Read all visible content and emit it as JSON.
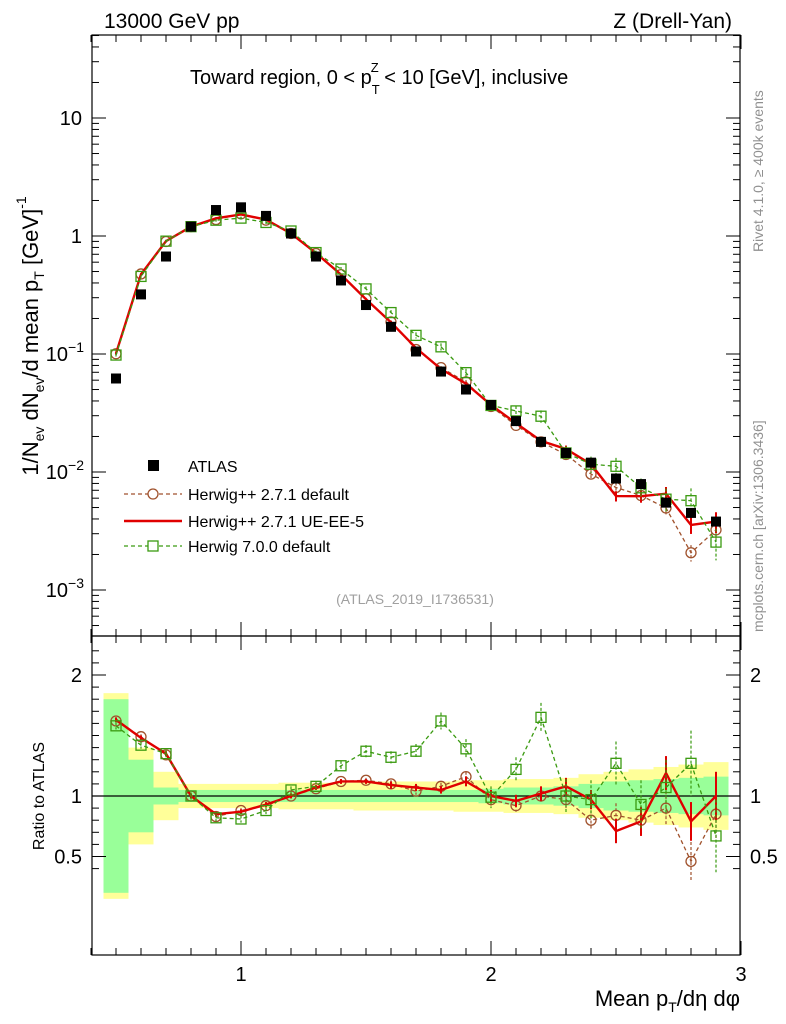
{
  "header": {
    "energy": "13000 GeV pp",
    "process": "Z (Drell-Yan)",
    "region": "Toward region, 0 < p",
    "region_sup": "Z",
    "region_sub": "T",
    "region_tail": " < 10 [GeV], inclusive",
    "analysis": "(ATLAS_2019_I1736531)"
  },
  "side": {
    "rivet": "Rivet 4.1.0, ≥ 400k events",
    "mcplots": "mcplots.cern.ch [arXiv:1306.3436]"
  },
  "axes": {
    "ylabel_main": "1/N_ev dN_ev/d mean p_T [GeV]^-1",
    "ylabel_ratio": "Ratio to ATLAS",
    "xlabel": "Mean p_T/dη dφ",
    "main_ticks": [
      {
        "exp": -3,
        "base": "10",
        "sup": "−3"
      },
      {
        "exp": -2,
        "base": "10",
        "sup": "−2"
      },
      {
        "exp": -1,
        "base": "10",
        "sup": "−1"
      },
      {
        "exp": 0,
        "label": "1"
      },
      {
        "exp": 1,
        "label": "10"
      }
    ],
    "ratio_ticks": [
      {
        "value": 0.5,
        "label": "0.5"
      },
      {
        "value": 1,
        "label": "1"
      },
      {
        "value": 2,
        "label": "2"
      }
    ],
    "x_ticks": [
      {
        "value": 1,
        "label": "1"
      },
      {
        "value": 2,
        "label": "2"
      },
      {
        "value": 3,
        "label": "3"
      }
    ]
  },
  "legend": [
    {
      "key": "atlas",
      "label": "ATLAS"
    },
    {
      "key": "h271def",
      "label": "Herwig++ 2.7.1 default"
    },
    {
      "key": "h271ue",
      "label": "Herwig++ 2.7.1 UE-EE-5"
    },
    {
      "key": "h700",
      "label": "Herwig 7.0.0 default"
    }
  ],
  "colors": {
    "atlas": "#000000",
    "h271def": "#a0522d",
    "h271ue": "#e00000",
    "h700": "#3a9a10",
    "band_inner": "#99ff99",
    "band_outer": "#ffff99"
  },
  "chart_data": {
    "type": "scatter",
    "title": "Toward region, 0 < pT^Z < 10 [GeV], inclusive",
    "xlabel": "Mean pT/dη dφ",
    "ylabel": "1/Nev dNev/d mean pT [GeV]^-1",
    "yscale": "log",
    "xlim": [
      0.4,
      3.0
    ],
    "ylim": [
      0.0003,
      60
    ],
    "ratio_ylim": [
      0.33,
      2.3
    ],
    "x": [
      0.5,
      0.6,
      0.7,
      0.8,
      0.9,
      1.0,
      1.1,
      1.2,
      1.3,
      1.4,
      1.5,
      1.6,
      1.7,
      1.8,
      1.9,
      2.0,
      2.1,
      2.2,
      2.3,
      2.4,
      2.5,
      2.6,
      2.7,
      2.8,
      2.9
    ],
    "atlas": [
      0.062,
      0.32,
      0.67,
      1.2,
      1.66,
      1.75,
      1.48,
      1.05,
      0.67,
      0.42,
      0.26,
      0.17,
      0.105,
      0.071,
      0.05,
      0.037,
      0.027,
      0.018,
      0.0145,
      0.012,
      0.0088,
      0.0079,
      0.0055,
      0.0045,
      0.0038
    ],
    "band_inner": [
      0.8,
      0.3,
      0.07,
      0.05,
      0.05,
      0.05,
      0.05,
      0.05,
      0.05,
      0.05,
      0.05,
      0.05,
      0.05,
      0.05,
      0.05,
      0.06,
      0.07,
      0.07,
      0.08,
      0.1,
      0.12,
      0.13,
      0.14,
      0.15,
      0.16
    ],
    "band_outer": [
      0.85,
      0.4,
      0.2,
      0.1,
      0.1,
      0.1,
      0.1,
      0.11,
      0.11,
      0.11,
      0.12,
      0.12,
      0.12,
      0.12,
      0.13,
      0.13,
      0.14,
      0.14,
      0.15,
      0.18,
      0.2,
      0.22,
      0.24,
      0.26,
      0.28
    ],
    "series": [
      {
        "name": "Herwig++ 2.7.1 default",
        "key": "h271def",
        "marker": "circle",
        "ratio": [
          1.62,
          1.49,
          1.34,
          1.0,
          0.83,
          0.88,
          0.92,
          1.0,
          1.06,
          1.12,
          1.13,
          1.1,
          1.04,
          1.08,
          1.16,
          0.97,
          0.92,
          1.0,
          0.97,
          0.8,
          0.84,
          0.8,
          0.9,
          0.46,
          0.85
        ],
        "ratio_err": [
          0.02,
          0.02,
          0.02,
          0.02,
          0.02,
          0.02,
          0.02,
          0.02,
          0.02,
          0.02,
          0.02,
          0.03,
          0.03,
          0.03,
          0.04,
          0.05,
          0.05,
          0.06,
          0.07,
          0.08,
          0.1,
          0.12,
          0.14,
          0.16,
          0.2
        ]
      },
      {
        "name": "Herwig++ 2.7.1 UE-EE-5",
        "key": "h271ue",
        "marker": "none",
        "ratio": [
          1.63,
          1.48,
          1.35,
          1.0,
          0.85,
          0.87,
          0.93,
          1.0,
          1.07,
          1.12,
          1.12,
          1.09,
          1.07,
          1.05,
          1.12,
          1.0,
          0.96,
          1.02,
          1.08,
          0.97,
          0.71,
          0.79,
          1.19,
          0.79,
          1.0
        ],
        "ratio_err": [
          0.02,
          0.02,
          0.02,
          0.02,
          0.02,
          0.02,
          0.02,
          0.02,
          0.02,
          0.02,
          0.02,
          0.03,
          0.03,
          0.03,
          0.04,
          0.05,
          0.05,
          0.06,
          0.07,
          0.08,
          0.1,
          0.12,
          0.14,
          0.16,
          0.2
        ]
      },
      {
        "name": "Herwig 7.0.0 default",
        "key": "h700",
        "marker": "square",
        "ratio": [
          1.58,
          1.42,
          1.35,
          1.0,
          0.82,
          0.81,
          0.88,
          1.05,
          1.08,
          1.25,
          1.37,
          1.32,
          1.37,
          1.62,
          1.39,
          0.99,
          1.22,
          1.65,
          1.0,
          0.97,
          1.27,
          0.93,
          1.07,
          1.27,
          0.67
        ],
        "ratio_err": [
          0.03,
          0.03,
          0.03,
          0.03,
          0.03,
          0.03,
          0.03,
          0.03,
          0.04,
          0.04,
          0.05,
          0.05,
          0.06,
          0.07,
          0.08,
          0.09,
          0.1,
          0.12,
          0.14,
          0.16,
          0.18,
          0.2,
          0.23,
          0.27,
          0.3
        ]
      }
    ]
  }
}
